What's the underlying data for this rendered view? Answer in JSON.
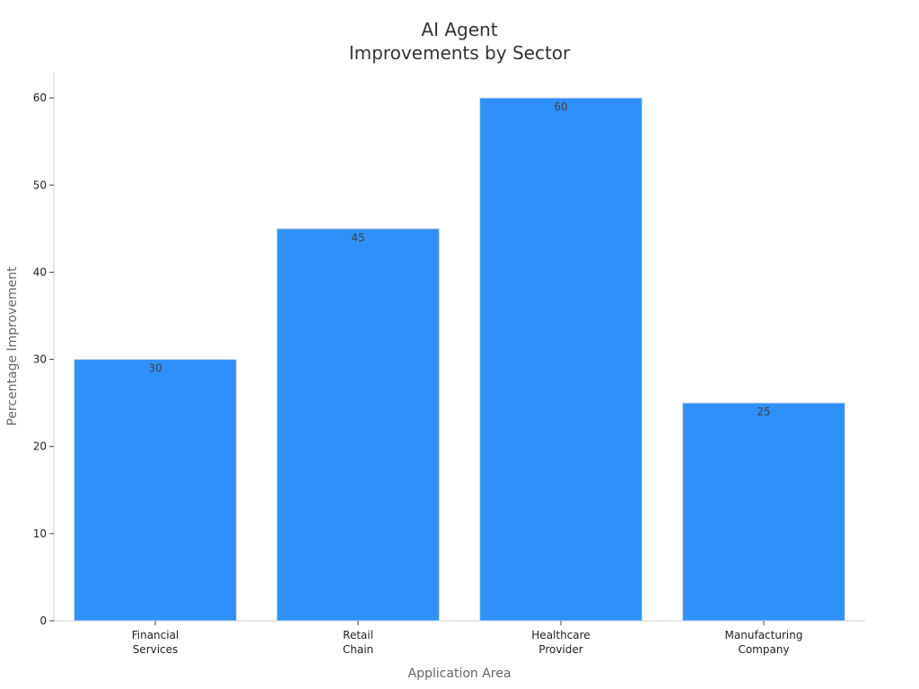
{
  "chart_data": {
    "type": "bar",
    "title_lines": [
      "AI Agent",
      "Improvements by Sector"
    ],
    "xlabel": "Application Area",
    "ylabel": "Percentage Improvement",
    "categories": [
      [
        "Financial",
        "Services"
      ],
      [
        "Retail",
        "Chain"
      ],
      [
        "Healthcare",
        "Provider"
      ],
      [
        "Manufacturing",
        "Company"
      ]
    ],
    "values": [
      30,
      45,
      60,
      25
    ],
    "data_labels": [
      "30",
      "45",
      "60",
      "25"
    ],
    "ylim": [
      0,
      63
    ],
    "yticks": [
      0,
      10,
      20,
      30,
      40,
      50,
      60
    ],
    "grid": false,
    "legend": "none",
    "bar_color": "#2f91f7",
    "bar_edge_color": "#cfd9e6",
    "axis_color": "#cccccc"
  }
}
